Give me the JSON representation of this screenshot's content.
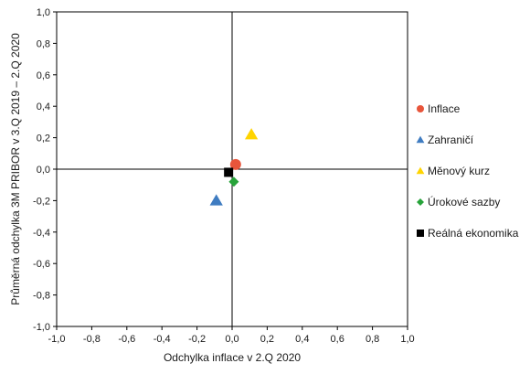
{
  "chart_data": {
    "type": "scatter",
    "xlabel": "Odchylka inflace v 2.Q 2020",
    "ylabel": "Průměrná odchylka 3M PRIBOR v 3.Q 2019 – 2.Q 2020",
    "xlim": [
      -1.0,
      1.0
    ],
    "ylim": [
      -1.0,
      1.0
    ],
    "x_ticks": [
      "-1,0",
      "-0,8",
      "-0,6",
      "-0,4",
      "-0,2",
      "0,0",
      "0,2",
      "0,4",
      "0,6",
      "0,8",
      "1,0"
    ],
    "y_ticks": [
      "1,0",
      "0,8",
      "0,6",
      "0,4",
      "0,2",
      "0,0",
      "-0,2",
      "-0,4",
      "-0,6",
      "-0,8",
      "-1,0"
    ],
    "grid": false,
    "legend_position": "right",
    "series": [
      {
        "name": "Inflace",
        "marker": "circle",
        "color": "#e8553b",
        "x": 0.02,
        "y": 0.03
      },
      {
        "name": "Zahraničí",
        "marker": "triangle",
        "color": "#3f7cc1",
        "x": -0.09,
        "y": -0.2
      },
      {
        "name": "Měnový kurz",
        "marker": "triangle",
        "color": "#ffd400",
        "x": 0.11,
        "y": 0.22
      },
      {
        "name": "Úrokové sazby",
        "marker": "diamond",
        "color": "#27a33a",
        "x": 0.01,
        "y": -0.08
      },
      {
        "name": "Reálná ekonomika",
        "marker": "square",
        "color": "#000000",
        "x": -0.02,
        "y": -0.02
      }
    ]
  }
}
